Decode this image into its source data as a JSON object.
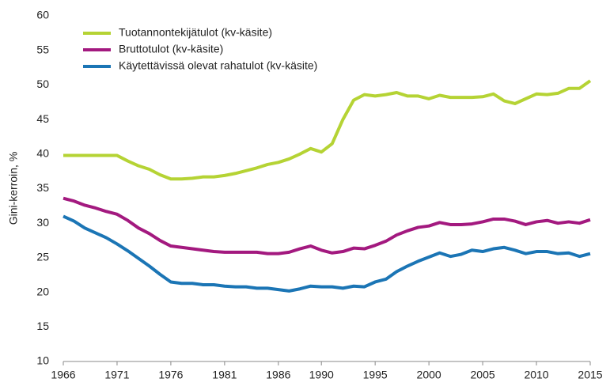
{
  "chart_data": {
    "type": "line",
    "ylabel": "Gini-kerroin, %",
    "x": [
      1966,
      1967,
      1968,
      1969,
      1970,
      1971,
      1972,
      1973,
      1974,
      1975,
      1976,
      1977,
      1978,
      1979,
      1980,
      1981,
      1982,
      1983,
      1984,
      1985,
      1986,
      1987,
      1988,
      1989,
      1990,
      1991,
      1992,
      1993,
      1994,
      1995,
      1996,
      1997,
      1998,
      1999,
      2000,
      2001,
      2002,
      2003,
      2004,
      2005,
      2006,
      2007,
      2008,
      2009,
      2010,
      2011,
      2012,
      2013,
      2014,
      2015
    ],
    "series": [
      {
        "name": "Tuotannontekijätulot (kv-käsite)",
        "color": "#b5d334",
        "values": [
          39.8,
          39.8,
          39.8,
          39.8,
          39.8,
          39.8,
          39,
          38.3,
          37.8,
          37,
          36.4,
          36.4,
          36.5,
          36.7,
          36.7,
          36.9,
          37.2,
          37.6,
          38,
          38.5,
          38.8,
          39.3,
          40,
          40.8,
          40.3,
          41.5,
          45,
          47.8,
          48.6,
          48.4,
          48.6,
          48.9,
          48.4,
          48.4,
          48,
          48.5,
          48.2,
          48.2,
          48.2,
          48.3,
          48.7,
          47.7,
          47.3,
          48,
          48.7,
          48.6,
          48.8,
          49.5,
          49.5,
          50.6
        ]
      },
      {
        "name": "Bruttotulot (kv-käsite)",
        "color": "#a3197f",
        "values": [
          33.6,
          33.2,
          32.6,
          32.2,
          31.7,
          31.3,
          30.4,
          29.3,
          28.5,
          27.5,
          26.7,
          26.5,
          26.3,
          26.1,
          25.9,
          25.8,
          25.8,
          25.8,
          25.8,
          25.6,
          25.6,
          25.8,
          26.3,
          26.7,
          26.1,
          25.7,
          25.9,
          26.4,
          26.3,
          26.8,
          27.4,
          28.3,
          28.9,
          29.4,
          29.6,
          30.1,
          29.8,
          29.8,
          29.9,
          30.2,
          30.6,
          30.6,
          30.3,
          29.8,
          30.2,
          30.4,
          30,
          30.2,
          30,
          30.5
        ]
      },
      {
        "name": "Käytettävissä olevat rahatulot (kv-käsite)",
        "color": "#1b75b5",
        "values": [
          31,
          30.3,
          29.3,
          28.6,
          27.9,
          27,
          26,
          24.9,
          23.8,
          22.6,
          21.5,
          21.3,
          21.3,
          21.1,
          21.1,
          20.9,
          20.8,
          20.8,
          20.6,
          20.6,
          20.4,
          20.2,
          20.5,
          20.9,
          20.8,
          20.8,
          20.6,
          20.9,
          20.8,
          21.5,
          21.9,
          23,
          23.8,
          24.5,
          25.1,
          25.7,
          25.2,
          25.5,
          26.1,
          25.9,
          26.3,
          26.5,
          26.1,
          25.6,
          25.9,
          25.9,
          25.6,
          25.7,
          25.2,
          25.6
        ]
      }
    ],
    "xlim": [
      1966,
      2015
    ],
    "xticks": [
      1966,
      1971,
      1976,
      1981,
      1986,
      1990,
      1995,
      2000,
      2005,
      2010,
      2015
    ],
    "ylim": [
      10,
      60
    ],
    "yticks": [
      10,
      15,
      20,
      25,
      30,
      35,
      40,
      45,
      50,
      55,
      60
    ],
    "legend": "top-left",
    "grid": false
  }
}
